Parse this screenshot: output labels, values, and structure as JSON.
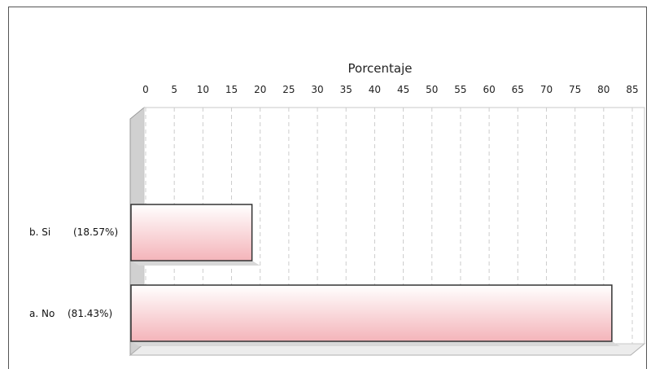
{
  "chart_data": {
    "type": "bar",
    "orientation": "horizontal",
    "title": "",
    "xlabel": "Porcentaje",
    "ylabel": "",
    "xlim": [
      0,
      85
    ],
    "xticks": [
      0,
      5,
      10,
      15,
      20,
      25,
      30,
      35,
      40,
      45,
      50,
      55,
      60,
      65,
      70,
      75,
      80,
      85
    ],
    "grid": true,
    "style": "3d",
    "categories": [
      "b. Si",
      "a. No"
    ],
    "category_labels": [
      "(18.57%)",
      "(81.43%)"
    ],
    "values": [
      18.57,
      81.43
    ],
    "colors": {
      "bar_top": "#ffffff",
      "bar_bottom": "#f4b4ba",
      "bar_border": "#333333",
      "wall": "#d0d0d0",
      "grid": "#cccccc"
    }
  }
}
